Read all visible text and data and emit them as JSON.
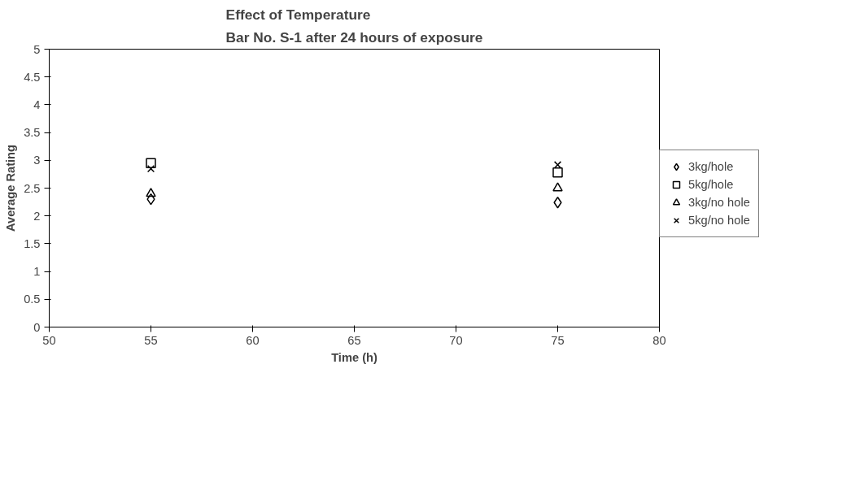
{
  "chart_data": {
    "type": "scatter",
    "title": "Effect of Temperature\nBar No. S-1 after 24 hours of exposure",
    "xlabel": "Time (h)",
    "ylabel": "Average Rating",
    "x": [
      55,
      75
    ],
    "xlim": [
      50,
      80
    ],
    "xticks": [
      50,
      55,
      60,
      65,
      70,
      75,
      80
    ],
    "ylim": [
      0,
      5
    ],
    "yticks": [
      0,
      0.5,
      1,
      1.5,
      2,
      2.5,
      3,
      3.5,
      4,
      4.5,
      5
    ],
    "grid": false,
    "legend": "right",
    "series": [
      {
        "name": "3kg/hole",
        "color": "#000000",
        "marker": "diamond",
        "values": [
          2.3,
          2.24
        ]
      },
      {
        "name": "5kg/hole",
        "color": "#000000",
        "marker": "square",
        "values": [
          2.95,
          2.78
        ]
      },
      {
        "name": "3kg/no hole",
        "color": "#000000",
        "marker": "triangle",
        "values": [
          2.4,
          2.5
        ]
      },
      {
        "name": "5kg/no hole",
        "color": "#000000",
        "marker": "cross",
        "values": [
          2.85,
          2.92
        ]
      }
    ]
  }
}
